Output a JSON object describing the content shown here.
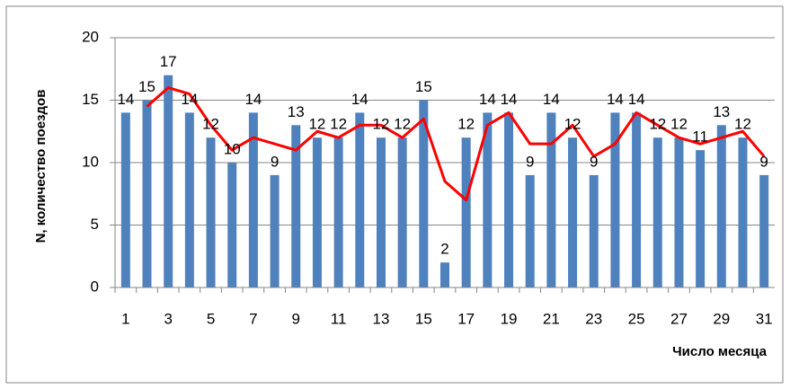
{
  "chart_data": {
    "type": "bar",
    "y_label": "N, количество поездов",
    "x_label": "Число месяца",
    "categories": [
      1,
      null,
      3,
      null,
      5,
      null,
      7,
      null,
      9,
      null,
      11,
      null,
      13,
      null,
      15,
      null,
      17,
      null,
      19,
      null,
      21,
      null,
      23,
      null,
      25,
      null,
      27,
      null,
      29,
      null,
      31
    ],
    "series": [
      {
        "type": "bar",
        "color": "#4f81bd",
        "values": [
          14,
          15,
          17,
          14,
          12,
          10,
          14,
          9,
          13,
          12,
          12,
          14,
          12,
          12,
          15,
          2,
          12,
          14,
          14,
          9,
          14,
          12,
          9,
          14,
          14,
          12,
          12,
          11,
          13,
          12,
          9
        ]
      },
      {
        "type": "line",
        "color": "#ff0000",
        "values": [
          null,
          14.5,
          16,
          15.5,
          13,
          11,
          12,
          11.5,
          11,
          12.5,
          12,
          13,
          13,
          12,
          13.5,
          8.5,
          7,
          13,
          14,
          11.5,
          11.5,
          13,
          10.5,
          11.5,
          14,
          13,
          12,
          11.5,
          12,
          12.5,
          10.5
        ]
      }
    ],
    "ylim": [
      0,
      20
    ],
    "yticks": [
      0,
      5,
      10,
      15,
      20
    ],
    "grid": true
  }
}
